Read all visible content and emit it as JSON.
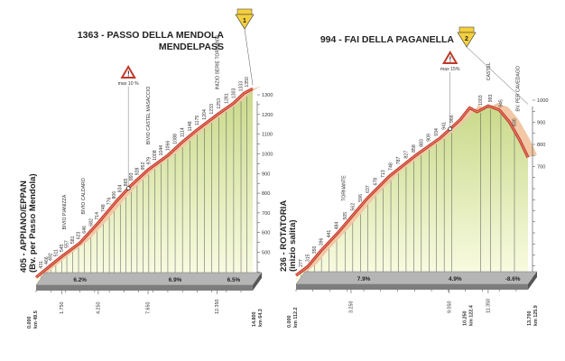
{
  "chart_data": [
    {
      "type": "area",
      "title": "1363 - PASSO DELLA MENDOLA",
      "subtitle": "MENDELPASS",
      "gpm_category": "1",
      "start_label": "405 - APPIANO/EPPAN",
      "start_sublabel": "(Bv. per Passo Mendola)",
      "finish_km_label": "14.800",
      "finish_km_total": "km 64.3",
      "start_km_label": "0.000",
      "start_km_total": "km 49.5",
      "ylim": [
        0,
        1300
      ],
      "y_ticks": [
        50,
        100,
        150,
        200,
        250,
        300,
        350,
        400,
        450,
        500,
        550,
        600,
        650,
        700,
        750,
        800,
        850,
        900,
        950,
        1000,
        1050,
        1100,
        1150,
        1200,
        1250,
        1300
      ],
      "y_tick_labels": [
        {
          "v": 500,
          "t": "500"
        },
        {
          "v": 600,
          "t": "600"
        },
        {
          "v": 700,
          "t": "700"
        },
        {
          "v": 800,
          "t": "800"
        },
        {
          "v": 900,
          "t": "900"
        },
        {
          "v": 1000,
          "t": "1000"
        },
        {
          "v": 1100,
          "t": "1100"
        },
        {
          "v": 1200,
          "t": "1200"
        },
        {
          "v": 1300,
          "t": "1300"
        }
      ],
      "xlim": [
        0,
        14.8
      ],
      "x": [
        0,
        1.0,
        1.75,
        3.0,
        4.25,
        5.5,
        6.5,
        7.65,
        9.0,
        10.0,
        11.0,
        12.35,
        13.5,
        14.2,
        14.8
      ],
      "y": [
        405,
        466,
        511,
        580,
        682,
        793,
        873,
        951,
        1024,
        1093,
        1154,
        1230,
        1290,
        1340,
        1363
      ],
      "points": [
        {
          "km": 0.35,
          "alt": "431"
        },
        {
          "km": 0.7,
          "alt": "466"
        },
        {
          "km": 1.0,
          "alt": "492"
        },
        {
          "km": 1.35,
          "alt": "511"
        },
        {
          "km": 1.75,
          "alt": "545"
        },
        {
          "km": 2.1,
          "alt": "557"
        },
        {
          "km": 2.5,
          "alt": "581"
        },
        {
          "km": 2.9,
          "alt": "623"
        },
        {
          "km": 3.3,
          "alt": "646"
        },
        {
          "km": 3.75,
          "alt": "682"
        },
        {
          "km": 4.15,
          "alt": "714"
        },
        {
          "km": 4.6,
          "alt": "748"
        },
        {
          "km": 5.0,
          "alt": "776"
        },
        {
          "km": 5.35,
          "alt": "806"
        },
        {
          "km": 5.75,
          "alt": "834"
        },
        {
          "km": 6.15,
          "alt": "865"
        },
        {
          "km": 6.5,
          "alt": "893"
        },
        {
          "km": 6.9,
          "alt": "928"
        },
        {
          "km": 7.3,
          "alt": "952"
        },
        {
          "km": 7.7,
          "alt": "979"
        },
        {
          "km": 8.1,
          "alt": "1008"
        },
        {
          "km": 8.55,
          "alt": "1044"
        },
        {
          "km": 9.0,
          "alt": "1066"
        },
        {
          "km": 9.5,
          "alt": "1088"
        },
        {
          "km": 10.0,
          "alt": "1114"
        },
        {
          "km": 10.5,
          "alt": "1148"
        },
        {
          "km": 11.0,
          "alt": "1175"
        },
        {
          "km": 11.5,
          "alt": "1204"
        },
        {
          "km": 12.0,
          "alt": "1233"
        },
        {
          "km": 12.5,
          "alt": "1253"
        },
        {
          "km": 13.0,
          "alt": "1281"
        },
        {
          "km": 13.5,
          "alt": "1303"
        },
        {
          "km": 14.0,
          "alt": "1333"
        },
        {
          "km": 14.4,
          "alt": "1350"
        }
      ],
      "annotations": [
        {
          "km": 1.9,
          "text": "BIVIO PIANIZZA"
        },
        {
          "km": 3.2,
          "text": "BIVIO CALDARO"
        },
        {
          "km": 7.65,
          "text": "BIVIO CASTEL MASACCIO"
        },
        {
          "km": 12.35,
          "text": "INIZIO SERIE TORNANTI"
        }
      ],
      "max_gradient": {
        "km": 6.3,
        "text": "max 10 %"
      },
      "gradients": [
        {
          "km": 3.0,
          "text": "6.2%"
        },
        {
          "km": 9.5,
          "text": "6.9%"
        },
        {
          "km": 13.5,
          "text": "6.5%"
        }
      ],
      "km_marks": [
        "1.750",
        "4.250",
        "7.650",
        "12.350"
      ]
    },
    {
      "type": "area",
      "title": "994 - FAI DELLA PAGANELLA",
      "gpm_category": "2",
      "start_label": "236 - ROTATORIA",
      "start_sublabel": "(inizio salita)",
      "finish_km_label": "13.700",
      "finish_km_total": "km 125.9",
      "summit_km_label": "10.250",
      "summit_km_total": "km 122.4",
      "start_km_label": "0.000",
      "start_km_total": "km 112.2",
      "ylim": [
        0,
        1000
      ],
      "y_ticks": [
        50,
        100,
        150,
        200,
        250,
        300,
        350,
        400,
        450,
        500,
        550,
        600,
        650,
        700,
        750,
        800,
        850,
        900,
        950,
        1000
      ],
      "y_tick_labels": [
        {
          "v": 700,
          "t": "700"
        },
        {
          "v": 800,
          "t": "800"
        },
        {
          "v": 900,
          "t": "900"
        },
        {
          "v": 1000,
          "t": "1000"
        }
      ],
      "xlim": [
        0,
        13.7
      ],
      "x": [
        0,
        0.7,
        1.5,
        2.5,
        3.25,
        4.2,
        5.5,
        7.0,
        8.5,
        9.7,
        10.25,
        10.7,
        11.35,
        12.0,
        12.6,
        13.2,
        13.7
      ],
      "y": [
        236,
        277,
        350,
        431,
        499,
        584,
        684,
        775,
        857,
        941,
        994,
        976,
        1003,
        985,
        930,
        850,
        770
      ],
      "points": [
        {
          "km": 0.3,
          "alt": "277"
        },
        {
          "km": 0.7,
          "alt": "315"
        },
        {
          "km": 1.1,
          "alt": "350"
        },
        {
          "km": 1.5,
          "alt": "396"
        },
        {
          "km": 1.95,
          "alt": "441"
        },
        {
          "km": 2.4,
          "alt": "484"
        },
        {
          "km": 2.9,
          "alt": "505"
        },
        {
          "km": 3.35,
          "alt": "562"
        },
        {
          "km": 3.8,
          "alt": "596"
        },
        {
          "km": 4.25,
          "alt": "637"
        },
        {
          "km": 4.7,
          "alt": "678"
        },
        {
          "km": 5.15,
          "alt": "713"
        },
        {
          "km": 5.6,
          "alt": "748"
        },
        {
          "km": 6.05,
          "alt": "787"
        },
        {
          "km": 6.5,
          "alt": "827"
        },
        {
          "km": 6.95,
          "alt": "858"
        },
        {
          "km": 7.4,
          "alt": "883"
        },
        {
          "km": 7.85,
          "alt": "909"
        },
        {
          "km": 8.3,
          "alt": "934"
        },
        {
          "km": 8.75,
          "alt": "941"
        },
        {
          "km": 9.2,
          "alt": "966"
        },
        {
          "km": 10.9,
          "alt": "1003"
        },
        {
          "km": 11.5,
          "alt": "993"
        },
        {
          "km": 12.1,
          "alt": "945"
        },
        {
          "km": 12.9,
          "alt": "830"
        }
      ],
      "annotations": [
        {
          "km": 2.8,
          "text": "TORNANTE"
        },
        {
          "km": 11.35,
          "text": "CASTEL"
        },
        {
          "km": 13.1,
          "text": "BV. PER CAVEDAGO"
        }
      ],
      "max_gradient": {
        "km": 9.1,
        "text": "max 15%"
      },
      "gradients": [
        {
          "km": 4.0,
          "text": "7.9%"
        },
        {
          "km": 9.4,
          "text": "4.9%"
        },
        {
          "km": 12.8,
          "text": "-8.6%"
        }
      ],
      "km_marks": [
        "3.250",
        "9.050",
        "11.350"
      ]
    }
  ]
}
